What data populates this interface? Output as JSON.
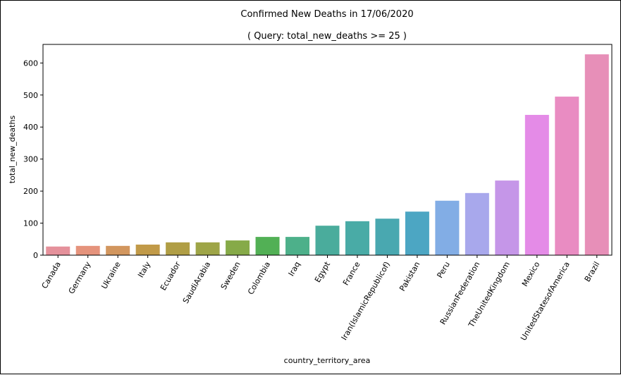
{
  "chart_data": {
    "type": "bar",
    "title": "Confirmed New Deaths in 17/06/2020",
    "subtitle": "( Query: total_new_deaths >= 25 )",
    "xlabel": "country_territory_area",
    "ylabel": "total_new_deaths",
    "ylim": [
      0,
      658
    ],
    "yticks": [
      0,
      100,
      200,
      300,
      400,
      500,
      600
    ],
    "grid": false,
    "categories": [
      "Canada",
      "Germany",
      "Ukraine",
      "Italy",
      "Ecuador",
      "SaudiArabia",
      "Sweden",
      "Colombia",
      "Iraq",
      "Egypt",
      "France",
      "Iran(IslamicRepublicof)",
      "Pakistan",
      "Peru",
      "RussianFederation",
      "TheUnitedKingdom",
      "Mexico",
      "UnitedStatesofAmerica",
      "Brazil"
    ],
    "values": [
      27,
      29,
      29,
      33,
      40,
      40,
      46,
      57,
      57,
      92,
      106,
      114,
      136,
      170,
      194,
      233,
      438,
      495,
      627
    ],
    "colors": [
      "#e5919b",
      "#e5937c",
      "#d2965e",
      "#c19a48",
      "#b09e45",
      "#9ea547",
      "#86aa48",
      "#52b055",
      "#4db08a",
      "#4aac9c",
      "#49aba6",
      "#49a8b0",
      "#4ca6c3",
      "#82ade5",
      "#a8a8ec",
      "#c596e8",
      "#e48be7",
      "#e98cc2",
      "#e78fb8"
    ]
  }
}
